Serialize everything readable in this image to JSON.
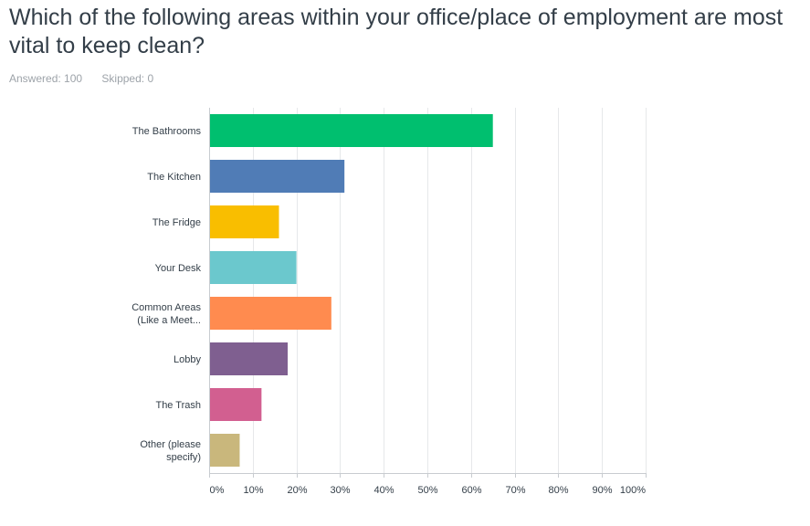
{
  "question": {
    "title": "Which of the following areas within your office/place of employment are most vital to keep clean?"
  },
  "summary": {
    "answered": "Answered: 100",
    "skipped": "Skipped: 0"
  },
  "chart_data": {
    "type": "bar",
    "orientation": "horizontal",
    "categories": [
      [
        "The Bathrooms"
      ],
      [
        "The Kitchen"
      ],
      [
        "The Fridge"
      ],
      [
        "Your Desk"
      ],
      [
        "Common Areas",
        "(Like a Meet..."
      ],
      [
        "Lobby"
      ],
      [
        "The Trash"
      ],
      [
        "Other (please",
        "specify)"
      ]
    ],
    "values": [
      65,
      31,
      16,
      20,
      28,
      18,
      12,
      7
    ],
    "colors": [
      "#00bf6f",
      "#507cb6",
      "#f9be00",
      "#6bc8cd",
      "#ff8b4f",
      "#7f5f90",
      "#d25f90",
      "#c9b77c"
    ],
    "xlim": [
      0,
      100
    ],
    "xticks": [
      "0%",
      "10%",
      "20%",
      "30%",
      "40%",
      "50%",
      "60%",
      "70%",
      "80%",
      "90%",
      "100%"
    ],
    "grid": true,
    "title": "",
    "xlabel": "",
    "ylabel": ""
  }
}
